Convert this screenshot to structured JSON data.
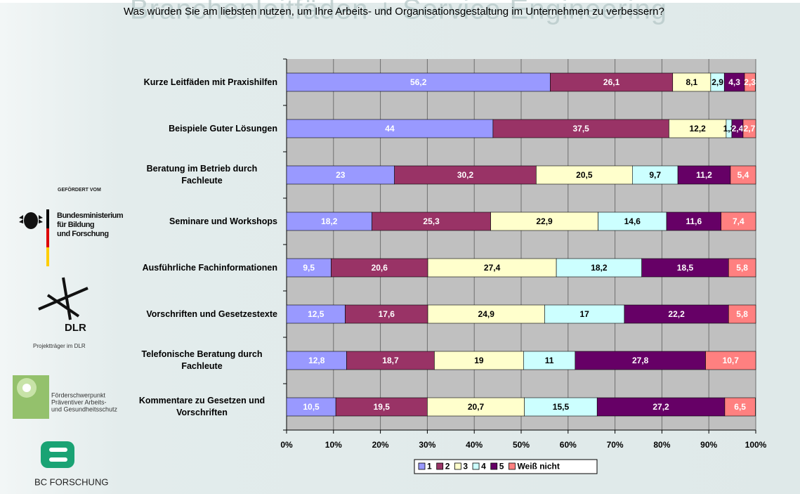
{
  "banner": "Branchenleitfäden + Service Engineering",
  "sidebar": {
    "funded_by": "GEFÖRDERT VOM",
    "ministry": [
      "Bundesministerium",
      "für Bildung",
      "und Forschung"
    ],
    "dlr": "DLR",
    "dlr_caption": "Projektträger im DLR",
    "focus": [
      "Förderschwerpunkt",
      "Präventiver Arbeits-",
      "und Gesundheitsschutz"
    ],
    "bc": "BC FORSCHUNG"
  },
  "chart_data": {
    "type": "bar",
    "orientation": "horizontal",
    "stacked": true,
    "title": "Was würden Sie am liebsten nutzen, um Ihre Arbeits- und Organisationsgestaltung im Unternehmen zu verbessern?",
    "categories": [
      "Kurze Leitfäden mit Praxishilfen",
      "Beispiele Guter Lösungen",
      "Beratung im Betrieb durch Fachleute",
      "Seminare und Workshops",
      "Ausführliche Fachinformationen",
      "Vorschriften und Gesetzestexte",
      "Telefonische Beratung durch Fachleute",
      "Kommentare zu Gesetzen und Vorschriften"
    ],
    "series": [
      {
        "name": "1",
        "color": "#9999ff",
        "label_color": "#ffffff",
        "values": [
          56.2,
          44,
          23,
          18.2,
          9.5,
          12.5,
          12.8,
          10.5
        ],
        "value_labels": [
          "56,2",
          "44",
          "23",
          "18,2",
          "9,5",
          "12,5",
          "12,8",
          "10,5"
        ]
      },
      {
        "name": "2",
        "color": "#993366",
        "label_color": "#ffffff",
        "values": [
          26.1,
          37.5,
          30.2,
          25.3,
          20.6,
          17.6,
          18.7,
          19.5
        ],
        "value_labels": [
          "26,1",
          "37,5",
          "30,2",
          "25,3",
          "20,6",
          "17,6",
          "18,7",
          "19,5"
        ]
      },
      {
        "name": "3",
        "color": "#ffffcc",
        "label_color": "#000000",
        "values": [
          8.1,
          12.2,
          20.5,
          22.9,
          27.4,
          24.9,
          19,
          20.7
        ],
        "value_labels": [
          "8,1",
          "12,2",
          "20,5",
          "22,9",
          "27,4",
          "24,9",
          "19",
          "20,7"
        ]
      },
      {
        "name": "4",
        "color": "#ccffff",
        "label_color": "#000000",
        "values": [
          2.9,
          1.2,
          9.7,
          14.6,
          18.2,
          17,
          11,
          15.5
        ],
        "value_labels": [
          "2,9",
          "1,2",
          "9,7",
          "14,6",
          "18,2",
          "17",
          "11",
          "15,5"
        ]
      },
      {
        "name": "5",
        "color": "#660066",
        "label_color": "#ffffff",
        "values": [
          4.3,
          2.4,
          11.2,
          11.6,
          18.5,
          22.2,
          27.8,
          27.2
        ],
        "value_labels": [
          "4,3",
          "2,4",
          "11,2",
          "11,6",
          "18,5",
          "22,2",
          "27,8",
          "27,2"
        ]
      },
      {
        "name": "Weiß nicht",
        "color": "#ff8080",
        "label_color": "#ffffff",
        "values": [
          2.3,
          2.7,
          5.4,
          7.4,
          5.8,
          5.8,
          10.7,
          6.5
        ],
        "value_labels": [
          "2,3",
          "2,7",
          "5,4",
          "7,4",
          "5,8",
          "5,8",
          "10,7",
          "6,5"
        ]
      }
    ],
    "xlim": [
      0,
      100
    ],
    "xticks": [
      {
        "value": 0,
        "label": "0%"
      },
      {
        "value": 10,
        "label": "10%"
      },
      {
        "value": 20,
        "label": "20%"
      },
      {
        "value": 30,
        "label": "30%"
      },
      {
        "value": 40,
        "label": "40%"
      },
      {
        "value": 50,
        "label": "50%"
      },
      {
        "value": 60,
        "label": "60%"
      },
      {
        "value": 70,
        "label": "70%"
      },
      {
        "value": 80,
        "label": "80%"
      },
      {
        "value": 90,
        "label": "90%"
      },
      {
        "value": 100,
        "label": "100%"
      }
    ],
    "grid": true,
    "plot_background": "#c0c0c0",
    "legend": "bottom"
  }
}
